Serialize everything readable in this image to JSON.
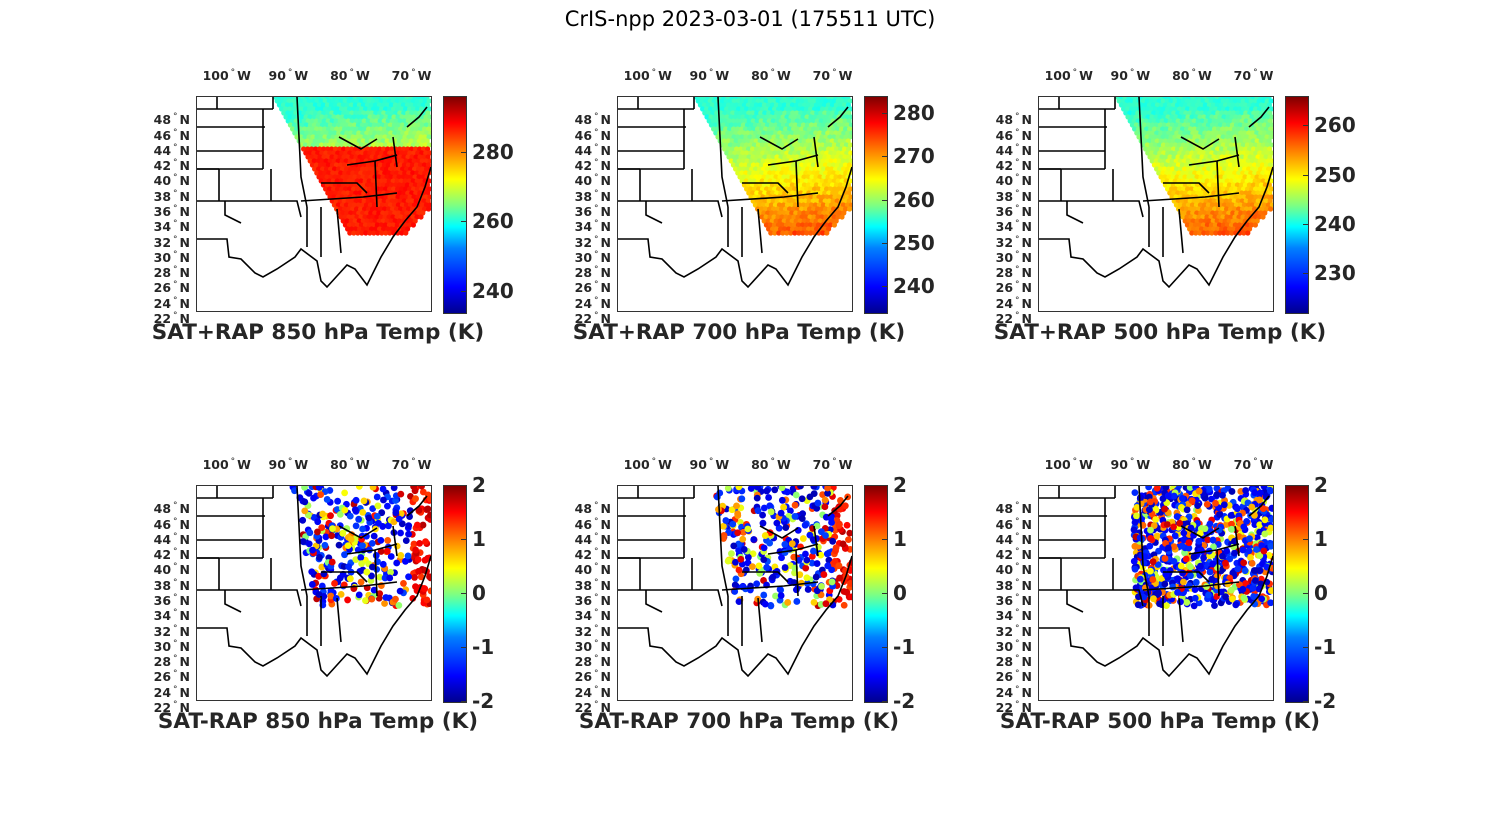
{
  "figure_title": "CrIS-npp 2023-03-01 (175511 UTC)",
  "colors": {
    "coast": "#000000",
    "warm": "#ff3000",
    "cool": "#00c0ff",
    "hot": "#c00000"
  },
  "chart_data": [
    {
      "type": "heatmap",
      "title": "SAT+RAP 850 hPa Temp (K)",
      "x_ticks": [
        "100",
        "90",
        "80",
        "70"
      ],
      "x_suffix": "W",
      "y_ticks": [
        "48",
        "46",
        "44",
        "42",
        "40",
        "38",
        "36",
        "34",
        "32",
        "30",
        "28",
        "26",
        "24",
        "22"
      ],
      "y_suffix": "N",
      "xlim": [
        -105,
        -67
      ],
      "ylim": [
        22,
        50
      ],
      "colorbar_ticks": [
        "280",
        "260",
        "240"
      ],
      "colorbar_values": [
        280,
        260,
        240
      ],
      "clim": [
        234,
        296
      ],
      "field": "warm-south cool-north swath"
    },
    {
      "type": "heatmap",
      "title": "SAT+RAP 700 hPa Temp (K)",
      "x_ticks": [
        "100",
        "90",
        "80",
        "70"
      ],
      "x_suffix": "W",
      "y_ticks": [
        "48",
        "46",
        "44",
        "42",
        "40",
        "38",
        "36",
        "34",
        "32",
        "30",
        "28",
        "26",
        "24",
        "22"
      ],
      "y_suffix": "N",
      "xlim": [
        -105,
        -67
      ],
      "ylim": [
        22,
        50
      ],
      "colorbar_ticks": [
        "280",
        "270",
        "260",
        "250",
        "240"
      ],
      "colorbar_values": [
        280,
        270,
        260,
        250,
        240
      ],
      "clim": [
        234,
        284
      ],
      "field": "warm-south cool-north swath"
    },
    {
      "type": "heatmap",
      "title": "SAT+RAP 500 hPa Temp (K)",
      "x_ticks": [
        "100",
        "90",
        "80",
        "70"
      ],
      "x_suffix": "W",
      "y_ticks": [
        "48",
        "46",
        "44",
        "42",
        "40",
        "38",
        "36",
        "34",
        "32",
        "30",
        "28",
        "26",
        "24",
        "22"
      ],
      "y_suffix": "N",
      "xlim": [
        -105,
        -67
      ],
      "ylim": [
        22,
        50
      ],
      "colorbar_ticks": [
        "260",
        "250",
        "240",
        "230"
      ],
      "colorbar_values": [
        260,
        250,
        240,
        230
      ],
      "clim": [
        222,
        266
      ],
      "field": "warm-south cool-north swath"
    },
    {
      "type": "heatmap",
      "title": "SAT-RAP 850 hPa Temp (K)",
      "x_ticks": [
        "100",
        "90",
        "80",
        "70"
      ],
      "x_suffix": "W",
      "y_ticks": [
        "48",
        "46",
        "44",
        "42",
        "40",
        "38",
        "36",
        "34",
        "32",
        "30",
        "28",
        "26",
        "24",
        "22"
      ],
      "y_suffix": "N",
      "xlim": [
        -105,
        -67
      ],
      "ylim": [
        22,
        50
      ],
      "colorbar_ticks": [
        "2",
        "1",
        "0",
        "-1",
        "-2"
      ],
      "colorbar_values": [
        2,
        1,
        0,
        -1,
        -2
      ],
      "clim": [
        -2,
        2
      ],
      "field": "scattered differences"
    },
    {
      "type": "heatmap",
      "title": "SAT-RAP 700 hPa Temp (K)",
      "x_ticks": [
        "100",
        "90",
        "80",
        "70"
      ],
      "x_suffix": "W",
      "y_ticks": [
        "48",
        "46",
        "44",
        "42",
        "40",
        "38",
        "36",
        "34",
        "32",
        "30",
        "28",
        "26",
        "24",
        "22"
      ],
      "y_suffix": "N",
      "xlim": [
        -105,
        -67
      ],
      "ylim": [
        22,
        50
      ],
      "colorbar_ticks": [
        "2",
        "1",
        "0",
        "-1",
        "-2"
      ],
      "colorbar_values": [
        2,
        1,
        0,
        -1,
        -2
      ],
      "clim": [
        -2,
        2
      ],
      "field": "scattered differences"
    },
    {
      "type": "heatmap",
      "title": "SAT-RAP 500 hPa Temp (K)",
      "x_ticks": [
        "100",
        "90",
        "80",
        "70"
      ],
      "x_suffix": "W",
      "y_ticks": [
        "48",
        "46",
        "44",
        "42",
        "40",
        "38",
        "36",
        "34",
        "32",
        "30",
        "28",
        "26",
        "24",
        "22"
      ],
      "y_suffix": "N",
      "xlim": [
        -105,
        -67
      ],
      "ylim": [
        22,
        50
      ],
      "colorbar_ticks": [
        "2",
        "1",
        "0",
        "-1",
        "-2"
      ],
      "colorbar_values": [
        2,
        1,
        0,
        -1,
        -2
      ],
      "clim": [
        -2,
        2
      ],
      "field": "scattered differences"
    }
  ]
}
